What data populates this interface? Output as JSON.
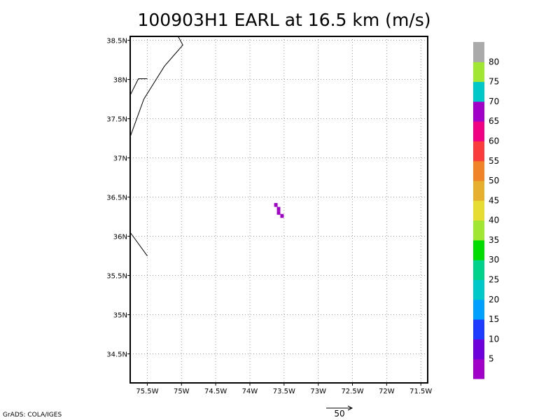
{
  "title": "100903H1 EARL at 16.5 km (m/s)",
  "footer": {
    "credit": "GrADS: COLA/IGES"
  },
  "chart_data": {
    "type": "heatmap",
    "title": "100903H1 EARL at 16.5 km (m/s)",
    "xlabel": "",
    "ylabel": "",
    "xlim": [
      -75.75,
      -71.4
    ],
    "ylim": [
      34.13,
      38.55
    ],
    "x_ticks": [
      {
        "value": -75.5,
        "label": "75.5W"
      },
      {
        "value": -75.0,
        "label": "75W"
      },
      {
        "value": -74.5,
        "label": "74.5W"
      },
      {
        "value": -74.0,
        "label": "74W"
      },
      {
        "value": -73.5,
        "label": "73.5W"
      },
      {
        "value": -73.0,
        "label": "73W"
      },
      {
        "value": -72.5,
        "label": "72.5W"
      },
      {
        "value": -72.0,
        "label": "72W"
      },
      {
        "value": -71.5,
        "label": "71.5W"
      }
    ],
    "y_ticks": [
      {
        "value": 34.5,
        "label": "34.5N"
      },
      {
        "value": 35.0,
        "label": "35N"
      },
      {
        "value": 35.5,
        "label": "35.5N"
      },
      {
        "value": 36.0,
        "label": "36N"
      },
      {
        "value": 36.5,
        "label": "36.5N"
      },
      {
        "value": 37.0,
        "label": "37N"
      },
      {
        "value": 37.5,
        "label": "37.5N"
      },
      {
        "value": 38.0,
        "label": "38N"
      },
      {
        "value": 38.5,
        "label": "38.5N"
      }
    ],
    "grid": true,
    "cells": [
      {
        "lon": -73.62,
        "lat": 36.4,
        "value": 2
      },
      {
        "lon": -73.58,
        "lat": 36.35,
        "value": 2
      },
      {
        "lon": -73.58,
        "lat": 36.3,
        "value": 2
      },
      {
        "lon": -73.53,
        "lat": 36.26,
        "value": 2
      }
    ],
    "coastlines": [
      [
        [
          -75.05,
          38.55
        ],
        [
          -74.98,
          38.44
        ],
        [
          -75.25,
          38.17
        ],
        [
          -75.55,
          37.75
        ],
        [
          -75.75,
          37.27
        ]
      ],
      [
        [
          -75.63,
          38.01
        ],
        [
          -75.75,
          37.8
        ]
      ],
      [
        [
          -75.63,
          38.01
        ],
        [
          -75.5,
          38.01
        ]
      ],
      [
        [
          -75.75,
          36.05
        ],
        [
          -75.5,
          35.75
        ]
      ]
    ],
    "colorbar": {
      "labels": [
        "5",
        "10",
        "15",
        "20",
        "25",
        "30",
        "35",
        "40",
        "45",
        "50",
        "55",
        "60",
        "65",
        "70",
        "75",
        "80"
      ],
      "colors": [
        "#a000c8",
        "#6e00dc",
        "#1e3cff",
        "#00a0ff",
        "#00c8c8",
        "#00d28c",
        "#00dc00",
        "#a0e632",
        "#e6dc32",
        "#e6af2d",
        "#f08228",
        "#fa3c3c",
        "#f00082",
        "#a000c8",
        "#00c8c8",
        "#a0e632",
        "#aaaaaa"
      ]
    },
    "reference_vector": {
      "value": 50,
      "label": "50"
    }
  }
}
